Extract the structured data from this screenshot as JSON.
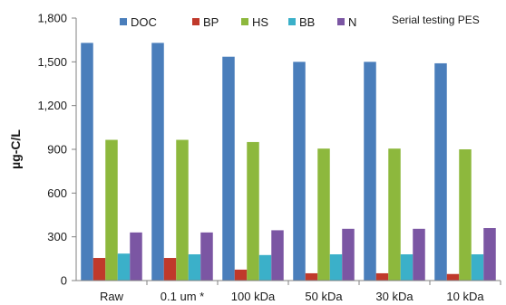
{
  "chart_data": {
    "type": "bar",
    "title": "",
    "annotation": "Serial testing PES",
    "xlabel": "",
    "ylabel": "µg-C/L",
    "ylim": [
      0,
      1800
    ],
    "yticks": [
      0,
      300,
      600,
      900,
      1200,
      1500,
      1800
    ],
    "ytick_labels": [
      "0",
      "300",
      "600",
      "900",
      "1,200",
      "1,500",
      "1,800"
    ],
    "grid": false,
    "legend_position": "top",
    "categories": [
      "Raw",
      "0.1 um *",
      "100 kDa",
      "50 kDa",
      "30 kDa",
      "10 kDa"
    ],
    "series": [
      {
        "name": "DOC",
        "color": "#4a7ebb",
        "values": [
          1630,
          1630,
          1535,
          1500,
          1500,
          1490
        ]
      },
      {
        "name": "BP",
        "color": "#c0392b",
        "values": [
          155,
          155,
          75,
          50,
          50,
          45
        ]
      },
      {
        "name": "HS",
        "color": "#8db83d",
        "values": [
          965,
          965,
          950,
          905,
          905,
          900
        ]
      },
      {
        "name": "BB",
        "color": "#3bb0c9",
        "values": [
          185,
          180,
          175,
          180,
          180,
          180
        ]
      },
      {
        "name": "N",
        "color": "#7b56a3",
        "values": [
          330,
          330,
          345,
          355,
          355,
          360
        ]
      }
    ]
  }
}
